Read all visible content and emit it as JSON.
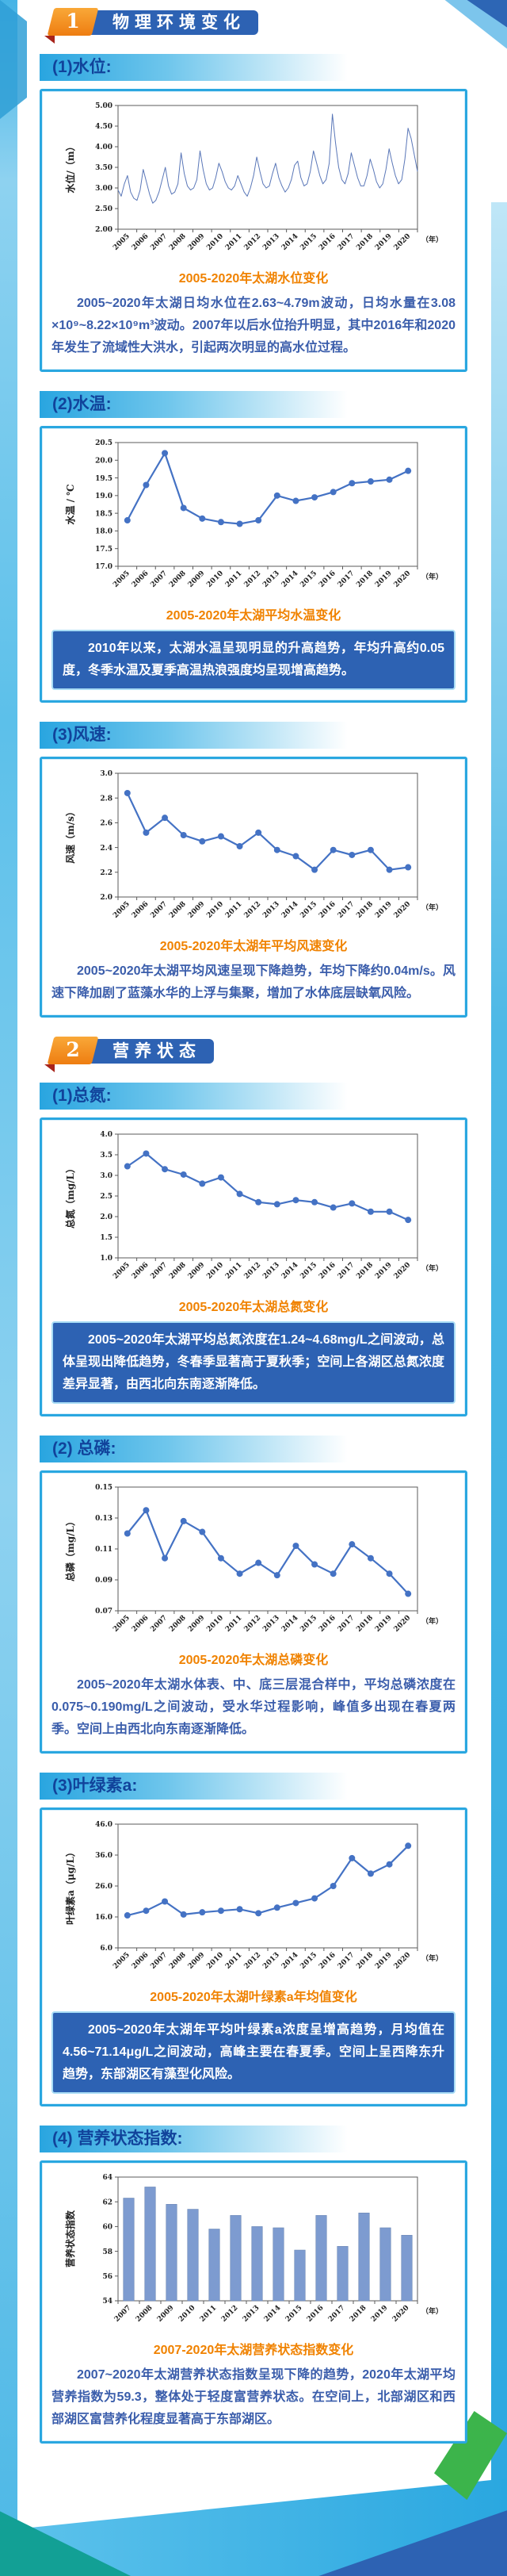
{
  "headers": [
    {
      "number": "1",
      "title": "物理环境变化"
    },
    {
      "number": "2",
      "title": "营养状态"
    }
  ],
  "blocks": [
    {
      "heading": "(1)水位:",
      "caption": "2005-2020年太湖水位变化",
      "highlight": false,
      "text": "2005~2020年太湖日均水位在2.63~4.79m波动，日均水量在3.08 ×10⁹~8.22×10⁹m³波动。2007年以后水位抬升明显，其中2016年和2020年发生了流域性大洪水，引起两次明显的高水位过程。"
    },
    {
      "heading": "(2)水温:",
      "caption": "2005-2020年太湖平均水温变化",
      "highlight": true,
      "text": "2010年以来，太湖水温呈现明显的升高趋势，年均升高约0.05度，冬季水温及夏季高温热浪强度均呈现增高趋势。"
    },
    {
      "heading": "(3)风速:",
      "caption": "2005-2020年太湖年平均风速变化",
      "highlight": false,
      "text": "2005~2020年太湖平均风速呈现下降趋势，年均下降约0.04m/s。风速下降加剧了蓝藻水华的上浮与集聚，增加了水体底层缺氧风险。"
    },
    {
      "heading": "(1)总氮:",
      "caption": "2005-2020年太湖总氮变化",
      "highlight": true,
      "text": "2005~2020年太湖平均总氮浓度在1.24~4.68mg/L之间波动，总体呈现出降低趋势，冬春季显著高于夏秋季；空间上各湖区总氮浓度差异显著，由西北向东南逐渐降低。"
    },
    {
      "heading": "(2) 总磷:",
      "caption": "2005-2020年太湖总磷变化",
      "highlight": false,
      "text": "2005~2020年太湖水体表、中、底三层混合样中，平均总磷浓度在0.075~0.190mg/L之间波动，受水华过程影响，峰值多出现在春夏两季。空间上由西北向东南逐渐降低。"
    },
    {
      "heading": "(3)叶绿素a:",
      "caption": "2005-2020年太湖叶绿素a年均值变化",
      "highlight": true,
      "text": "2005~2020年太湖年平均叶绿素a浓度呈增高趋势，月均值在4.56~71.14μg/L之间波动，高峰主要在春夏季。空间上呈西降东升趋势，东部湖区有藻型化风险。"
    },
    {
      "heading": "(4) 营养状态指数:",
      "caption": "2007-2020年太湖营养状态指数变化",
      "highlight": false,
      "text": "2007~2020年太湖营养状态指数呈现下降的趋势，2020年太湖平均营养指数为59.3，整体处于轻度富营养状态。在空间上，北部湖区和西部湖区富营养化程度显著高于东部湖区。"
    }
  ],
  "chart_data": [
    {
      "type": "line",
      "dense": true,
      "markers": false,
      "title": "2005-2020年太湖水位变化",
      "ylabel": "水位/（m）",
      "xlabel": "（年）",
      "ylim": [
        2.0,
        5.0
      ],
      "yticks": [
        "2.00",
        "2.50",
        "3.00",
        "3.50",
        "4.00",
        "4.50",
        "5.00"
      ],
      "categories": [
        "2005",
        "2006",
        "2007",
        "2008",
        "2009",
        "2010",
        "2011",
        "2012",
        "2013",
        "2014",
        "2015",
        "2016",
        "2017",
        "2018",
        "2019",
        "2020"
      ],
      "values": [
        2.95,
        2.8,
        3.1,
        3.3,
        2.9,
        2.75,
        2.7,
        2.95,
        3.45,
        3.15,
        2.85,
        2.63,
        2.7,
        2.9,
        3.2,
        3.5,
        3.05,
        2.85,
        2.9,
        3.1,
        3.85,
        3.35,
        3.05,
        2.95,
        3.0,
        3.2,
        3.9,
        3.45,
        3.1,
        2.95,
        3.0,
        3.25,
        3.6,
        3.4,
        3.15,
        3.0,
        2.95,
        3.05,
        3.3,
        3.1,
        2.9,
        2.8,
        3.0,
        3.3,
        3.75,
        3.4,
        3.1,
        3.0,
        3.05,
        3.35,
        3.6,
        3.25,
        3.05,
        2.9,
        3.0,
        3.2,
        3.55,
        3.65,
        3.25,
        3.05,
        3.1,
        3.4,
        3.9,
        3.6,
        3.3,
        3.1,
        3.2,
        3.6,
        4.79,
        4.1,
        3.5,
        3.2,
        3.1,
        3.35,
        3.85,
        3.55,
        3.25,
        3.05,
        3.05,
        3.3,
        3.7,
        3.45,
        3.15,
        3.0,
        3.1,
        3.45,
        3.95,
        3.6,
        3.3,
        3.1,
        3.2,
        3.7,
        4.45,
        4.2,
        3.8,
        3.4
      ],
      "color": "#5a77b8"
    },
    {
      "type": "line",
      "dense": false,
      "markers": true,
      "title": "2005-2020年太湖平均水温变化",
      "ylabel": "水温 / ℃",
      "xlabel": "（年）",
      "ylim": [
        17.0,
        20.5
      ],
      "yticks": [
        "17.0",
        "17.5",
        "18.0",
        "18.5",
        "19.0",
        "19.5",
        "20.0",
        "20.5"
      ],
      "categories": [
        "2005",
        "2006",
        "2007",
        "2008",
        "2009",
        "2010",
        "2011",
        "2012",
        "2013",
        "2014",
        "2015",
        "2016",
        "2017",
        "2018",
        "2019",
        "2020"
      ],
      "values": [
        18.3,
        19.3,
        20.2,
        18.65,
        18.35,
        18.25,
        18.2,
        18.3,
        19.0,
        18.85,
        18.95,
        19.1,
        19.35,
        19.4,
        19.45,
        19.7
      ],
      "color": "#4472c4"
    },
    {
      "type": "line",
      "dense": false,
      "markers": true,
      "title": "2005-2020年太湖年平均风速变化",
      "ylabel": "风速（m/s）",
      "xlabel": "（年）",
      "ylim": [
        2.0,
        3.0
      ],
      "yticks": [
        "2.0",
        "2.2",
        "2.4",
        "2.6",
        "2.8",
        "3.0"
      ],
      "categories": [
        "2005",
        "2006",
        "2007",
        "2008",
        "2009",
        "2010",
        "2011",
        "2012",
        "2013",
        "2014",
        "2015",
        "2016",
        "2017",
        "2018",
        "2019",
        "2020"
      ],
      "values": [
        2.84,
        2.52,
        2.64,
        2.5,
        2.45,
        2.49,
        2.41,
        2.52,
        2.38,
        2.33,
        2.22,
        2.38,
        2.34,
        2.38,
        2.22,
        2.24
      ],
      "color": "#4472c4"
    },
    {
      "type": "line",
      "dense": false,
      "markers": true,
      "title": "2005-2020年太湖总氮变化",
      "ylabel": "总氮（mg/L）",
      "xlabel": "（年）",
      "ylim": [
        1.0,
        4.0
      ],
      "yticks": [
        "1.0",
        "1.5",
        "2.0",
        "2.5",
        "3.0",
        "3.5",
        "4.0"
      ],
      "categories": [
        "2005",
        "2006",
        "2007",
        "2008",
        "2009",
        "2010",
        "2011",
        "2012",
        "2013",
        "2014",
        "2015",
        "2016",
        "2017",
        "2018",
        "2019",
        "2020"
      ],
      "values": [
        3.22,
        3.53,
        3.15,
        3.02,
        2.8,
        2.95,
        2.55,
        2.35,
        2.3,
        2.4,
        2.35,
        2.22,
        2.32,
        2.12,
        2.12,
        1.92
      ],
      "color": "#4472c4"
    },
    {
      "type": "line",
      "dense": false,
      "markers": true,
      "title": "2005-2020年太湖总磷变化",
      "ylabel": "总磷（mg/L）",
      "xlabel": "（年）",
      "ylim": [
        0.07,
        0.15
      ],
      "yticks": [
        "0.07",
        "0.09",
        "0.11",
        "0.13",
        "0.15"
      ],
      "categories": [
        "2005",
        "2006",
        "2007",
        "2008",
        "2009",
        "2010",
        "2011",
        "2012",
        "2013",
        "2014",
        "2015",
        "2016",
        "2017",
        "2018",
        "2019",
        "2020"
      ],
      "values": [
        0.12,
        0.135,
        0.104,
        0.128,
        0.121,
        0.104,
        0.094,
        0.101,
        0.093,
        0.112,
        0.1,
        0.094,
        0.113,
        0.104,
        0.094,
        0.081
      ],
      "color": "#4472c4"
    },
    {
      "type": "line",
      "dense": false,
      "markers": true,
      "title": "2005-2020年太湖叶绿素a年均值变化",
      "ylabel": "叶绿素a（μg/L）",
      "xlabel": "（年）",
      "ylim": [
        6.0,
        46.0
      ],
      "yticks": [
        "6.0",
        "16.0",
        "26.0",
        "36.0",
        "46.0"
      ],
      "categories": [
        "2005",
        "2006",
        "2007",
        "2008",
        "2009",
        "2010",
        "2011",
        "2012",
        "2013",
        "2014",
        "2015",
        "2016",
        "2017",
        "2018",
        "2019",
        "2020"
      ],
      "values": [
        16.5,
        18.0,
        21.0,
        16.8,
        17.5,
        18.0,
        18.5,
        17.2,
        19.0,
        20.5,
        22.0,
        26.0,
        35.0,
        30.0,
        33.0,
        39.0
      ],
      "color": "#4472c4"
    },
    {
      "type": "bar",
      "title": "2007-2020年太湖营养状态指数变化",
      "ylabel": "营养状态指数",
      "xlabel": "（年）",
      "ylim": [
        54,
        64
      ],
      "yticks": [
        "54",
        "56",
        "58",
        "60",
        "62",
        "64"
      ],
      "categories": [
        "2007",
        "2008",
        "2009",
        "2010",
        "2011",
        "2012",
        "2013",
        "2014",
        "2015",
        "2016",
        "2017",
        "2018",
        "2019",
        "2020"
      ],
      "values": [
        62.3,
        63.2,
        61.8,
        61.4,
        59.8,
        60.9,
        60.0,
        59.9,
        58.1,
        60.9,
        58.4,
        61.1,
        59.9,
        59.3
      ],
      "color": "#7d9bd0"
    }
  ],
  "colors": {
    "accent_orange": "#f08200",
    "banner_blue": "#2d62b3",
    "cyan_border": "#2aa7e0",
    "body_text_blue": "#3a5dab",
    "highlight_bg": "#2d62b3",
    "line_series": "#4472c4",
    "bar_series": "#7d9bd0"
  }
}
